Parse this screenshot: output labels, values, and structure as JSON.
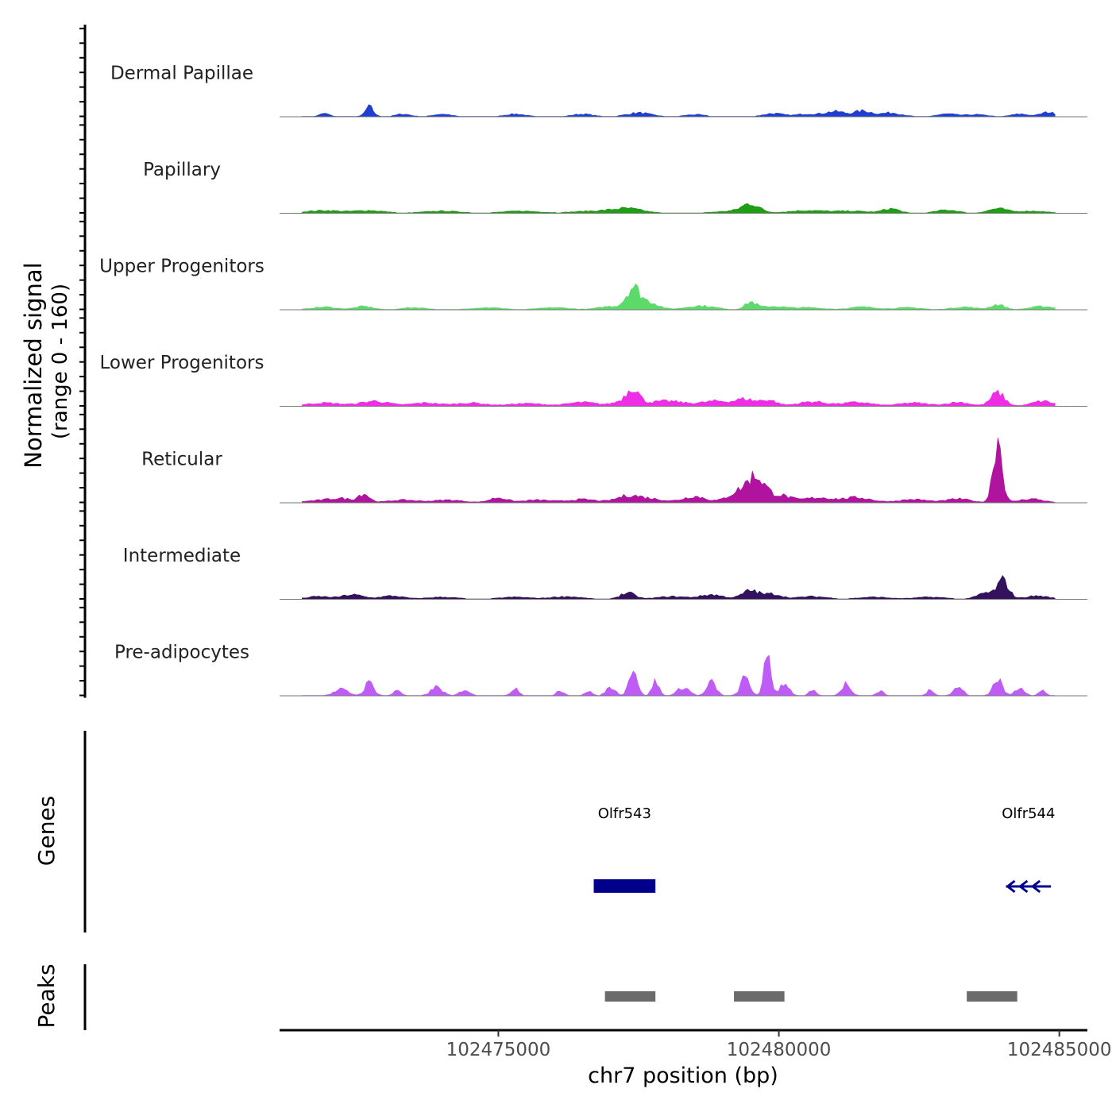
{
  "chart_data": {
    "type": "area",
    "title": "",
    "xlabel": "chr7 position (bp)",
    "ylabel_line1": "Normalized signal",
    "ylabel_line2": "(range 0 - 160)",
    "ylim": [
      0,
      160
    ],
    "xlim": [
      102471100,
      102485500
    ],
    "x_ticks": [
      102475000,
      102480000,
      102485000
    ],
    "x_tick_labels": [
      "102475000",
      "102480000",
      "102485000"
    ],
    "genes_label": "Genes",
    "peaks_label": "Peaks",
    "series": [
      {
        "name": "Dermal Papillae",
        "color": "#1f3fd1",
        "peaks": [
          [
            102471900,
            5,
            80
          ],
          [
            102472700,
            16,
            70
          ],
          [
            102473300,
            4,
            120
          ],
          [
            102474000,
            4,
            140
          ],
          [
            102475300,
            4,
            160
          ],
          [
            102476500,
            4,
            160
          ],
          [
            102477500,
            6,
            200
          ],
          [
            102478500,
            3,
            160
          ],
          [
            102479900,
            5,
            160
          ],
          [
            102480500,
            4,
            200
          ],
          [
            102481000,
            8,
            180
          ],
          [
            102481500,
            9,
            160
          ],
          [
            102482000,
            6,
            180
          ],
          [
            102483000,
            4,
            160
          ],
          [
            102483500,
            3,
            180
          ],
          [
            102484300,
            4,
            140
          ],
          [
            102484800,
            7,
            130
          ]
        ]
      },
      {
        "name": "Papillary",
        "color": "#1e9e13",
        "peaks": [
          [
            102471900,
            4,
            300
          ],
          [
            102472700,
            4,
            250
          ],
          [
            102474000,
            3,
            300
          ],
          [
            102475400,
            3,
            300
          ],
          [
            102476700,
            3,
            350
          ],
          [
            102477300,
            7,
            260
          ],
          [
            102479200,
            3,
            300
          ],
          [
            102479500,
            14,
            150
          ],
          [
            102480500,
            4,
            300
          ],
          [
            102481300,
            3,
            300
          ],
          [
            102482000,
            7,
            140
          ],
          [
            102483000,
            5,
            180
          ],
          [
            102483900,
            7,
            160
          ],
          [
            102484500,
            3,
            260
          ]
        ]
      },
      {
        "name": "Upper Progenitors",
        "color": "#5ddb6a",
        "peaks": [
          [
            102471900,
            4,
            200
          ],
          [
            102472600,
            5,
            150
          ],
          [
            102473500,
            3,
            200
          ],
          [
            102474800,
            3,
            250
          ],
          [
            102476000,
            3,
            250
          ],
          [
            102477000,
            5,
            200
          ],
          [
            102477400,
            36,
            120
          ],
          [
            102477700,
            12,
            150
          ],
          [
            102478600,
            6,
            250
          ],
          [
            102479500,
            12,
            100
          ],
          [
            102479900,
            5,
            200
          ],
          [
            102480500,
            3,
            250
          ],
          [
            102481500,
            4,
            220
          ],
          [
            102482300,
            3,
            220
          ],
          [
            102483300,
            4,
            200
          ],
          [
            102483900,
            8,
            120
          ],
          [
            102484700,
            5,
            200
          ]
        ]
      },
      {
        "name": "Lower Progenitors",
        "color": "#ef2ce6",
        "peaks": [
          [
            102471900,
            5,
            300
          ],
          [
            102472800,
            8,
            240
          ],
          [
            102473700,
            5,
            250
          ],
          [
            102474500,
            5,
            250
          ],
          [
            102475500,
            4,
            300
          ],
          [
            102476500,
            6,
            250
          ],
          [
            102477300,
            10,
            200
          ],
          [
            102477400,
            22,
            100
          ],
          [
            102478000,
            8,
            300
          ],
          [
            102478900,
            8,
            280
          ],
          [
            102479400,
            10,
            150
          ],
          [
            102479800,
            10,
            150
          ],
          [
            102480600,
            7,
            250
          ],
          [
            102481400,
            6,
            250
          ],
          [
            102482400,
            5,
            250
          ],
          [
            102483200,
            6,
            200
          ],
          [
            102483900,
            22,
            120
          ],
          [
            102484700,
            8,
            180
          ]
        ]
      },
      {
        "name": "Reticular",
        "color": "#b0149f",
        "peaks": [
          [
            102471800,
            3,
            250
          ],
          [
            102472200,
            6,
            200
          ],
          [
            102472600,
            14,
            100
          ],
          [
            102473300,
            4,
            250
          ],
          [
            102474100,
            4,
            250
          ],
          [
            102475000,
            8,
            150
          ],
          [
            102475700,
            4,
            250
          ],
          [
            102476500,
            5,
            250
          ],
          [
            102477300,
            10,
            200
          ],
          [
            102477700,
            6,
            250
          ],
          [
            102478500,
            10,
            200
          ],
          [
            102479300,
            18,
            200
          ],
          [
            102479600,
            38,
            150
          ],
          [
            102480000,
            12,
            200
          ],
          [
            102480700,
            8,
            250
          ],
          [
            102481400,
            8,
            250
          ],
          [
            102482400,
            5,
            250
          ],
          [
            102483200,
            6,
            200
          ],
          [
            102483900,
            108,
            80
          ],
          [
            102484500,
            6,
            200
          ]
        ]
      },
      {
        "name": "Intermediate",
        "color": "#33115e",
        "peaks": [
          [
            102471800,
            4,
            200
          ],
          [
            102472400,
            7,
            180
          ],
          [
            102473100,
            5,
            200
          ],
          [
            102474000,
            3,
            250
          ],
          [
            102475300,
            3,
            250
          ],
          [
            102476200,
            4,
            250
          ],
          [
            102477300,
            10,
            130
          ],
          [
            102478100,
            4,
            250
          ],
          [
            102478800,
            7,
            200
          ],
          [
            102479500,
            14,
            150
          ],
          [
            102479900,
            8,
            150
          ],
          [
            102480600,
            4,
            250
          ],
          [
            102481700,
            3,
            250
          ],
          [
            102482700,
            3,
            250
          ],
          [
            102483700,
            10,
            150
          ],
          [
            102484000,
            30,
            100
          ],
          [
            102484600,
            5,
            200
          ]
        ]
      },
      {
        "name": "Pre-adipocytes",
        "color": "#bf5cf6",
        "peaks": [
          [
            102472200,
            10,
            120
          ],
          [
            102472700,
            22,
            80
          ],
          [
            102473200,
            10,
            60
          ],
          [
            102473900,
            14,
            100
          ],
          [
            102474400,
            10,
            80
          ],
          [
            102475300,
            14,
            60
          ],
          [
            102476100,
            8,
            60
          ],
          [
            102476600,
            8,
            60
          ],
          [
            102477000,
            14,
            80
          ],
          [
            102477400,
            50,
            70
          ],
          [
            102477800,
            24,
            60
          ],
          [
            102478300,
            14,
            100
          ],
          [
            102478800,
            22,
            80
          ],
          [
            102479400,
            30,
            80
          ],
          [
            102479800,
            70,
            60
          ],
          [
            102480100,
            22,
            80
          ],
          [
            102480600,
            8,
            60
          ],
          [
            102481200,
            20,
            80
          ],
          [
            102481800,
            8,
            60
          ],
          [
            102482700,
            10,
            60
          ],
          [
            102483200,
            14,
            80
          ],
          [
            102483900,
            28,
            80
          ],
          [
            102484300,
            14,
            80
          ],
          [
            102484700,
            8,
            60
          ]
        ]
      }
    ],
    "genes": [
      {
        "name": "Olfr543",
        "start": 102476700,
        "end": 102477800,
        "type": "block",
        "strand": "+"
      },
      {
        "name": "Olfr544",
        "start": 102484050,
        "end": 102484850,
        "type": "arrows",
        "strand": "-"
      }
    ],
    "peak_regions": [
      {
        "start": 102476900,
        "end": 102477800
      },
      {
        "start": 102479200,
        "end": 102480100
      },
      {
        "start": 102483350,
        "end": 102484250
      }
    ],
    "colors": {
      "gene": "#00008b",
      "peak": "#6b6b6b",
      "axis": "#000000",
      "baseline": "#777777",
      "text": "#222222"
    }
  }
}
